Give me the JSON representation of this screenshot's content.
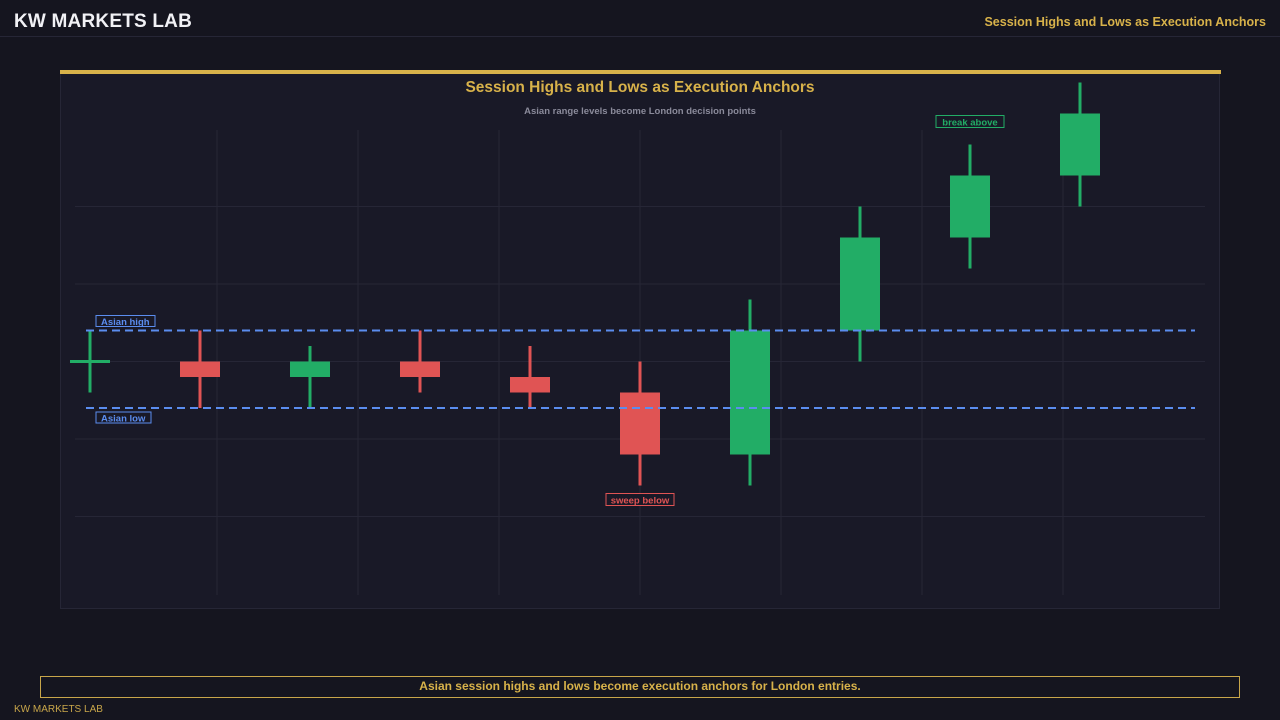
{
  "header": {
    "brand": "KW MARKETS LAB",
    "right_title": "Session Highs and Lows as Execution Anchors"
  },
  "chart_data": {
    "type": "candlestick",
    "title": "Session Highs and Lows as Execution Anchors",
    "subtitle": "Asian range levels become London decision points",
    "ylim": [
      0,
      6
    ],
    "candles": [
      {
        "open": 3.0,
        "close": 3.0,
        "high": 3.4,
        "low": 2.6
      },
      {
        "open": 3.0,
        "close": 2.8,
        "high": 3.4,
        "low": 2.4
      },
      {
        "open": 2.8,
        "close": 3.0,
        "high": 3.2,
        "low": 2.4
      },
      {
        "open": 3.0,
        "close": 2.8,
        "high": 3.4,
        "low": 2.6
      },
      {
        "open": 2.8,
        "close": 2.6,
        "high": 3.2,
        "low": 2.4
      },
      {
        "open": 2.6,
        "close": 1.8,
        "high": 3.0,
        "low": 1.4
      },
      {
        "open": 1.8,
        "close": 3.4,
        "high": 3.8,
        "low": 1.4
      },
      {
        "open": 3.4,
        "close": 4.6,
        "high": 5.0,
        "low": 3.0
      },
      {
        "open": 4.6,
        "close": 5.4,
        "high": 5.8,
        "low": 4.2
      },
      {
        "open": 5.4,
        "close": 6.2,
        "high": 6.6,
        "low": 5.0
      }
    ],
    "levels": [
      {
        "name": "Asian high",
        "value": 3.4
      },
      {
        "name": "Asian low",
        "value": 2.4
      }
    ],
    "annotations": [
      {
        "text": "sweep below",
        "candle_index": 5,
        "position": "below"
      },
      {
        "text": "break above",
        "candle_index": 8,
        "position": "above"
      }
    ],
    "grid": true,
    "colors": {
      "up": "#22ad66",
      "down": "#e05454",
      "level": "#5b8def",
      "accent": "#d8b24a",
      "grid": "#262636"
    }
  },
  "footer": {
    "caption": "Asian session highs and lows become execution anchors for London entries.",
    "brand": "KW MARKETS LAB"
  }
}
